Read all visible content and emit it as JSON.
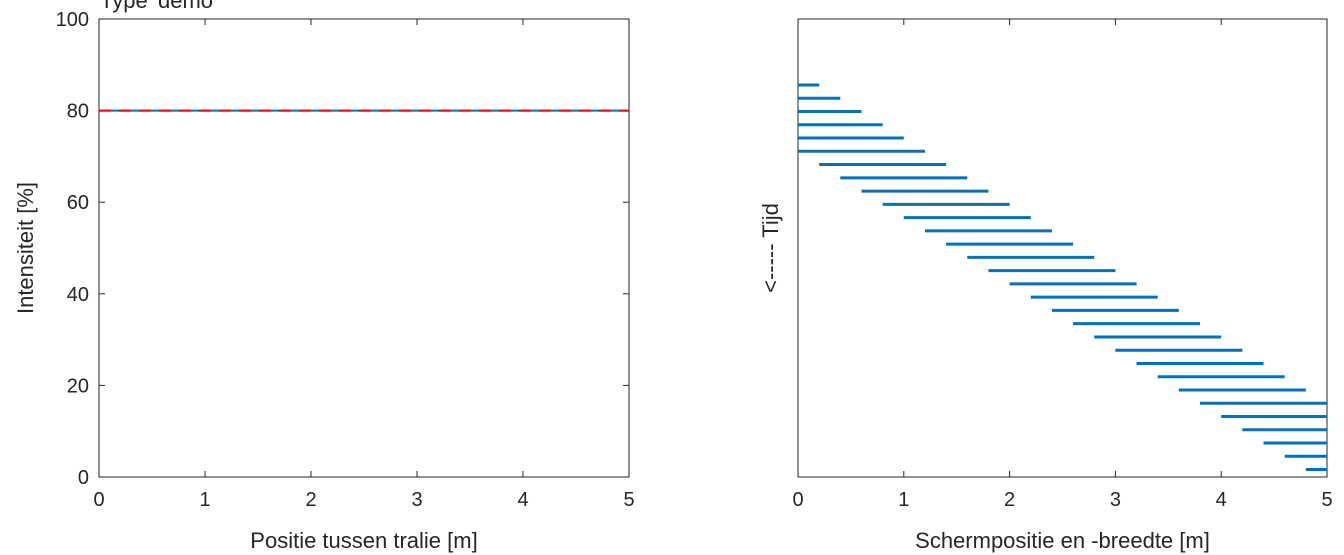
{
  "figure": {
    "title": "Type 'demo'"
  },
  "chart_data": [
    {
      "type": "line",
      "xlabel": "Positie tussen tralie [m]",
      "ylabel": "Intensiteit [%]",
      "xlim": [
        0,
        5
      ],
      "ylim": [
        0,
        100
      ],
      "xticks": [
        0,
        1,
        2,
        3,
        4,
        5
      ],
      "yticks": [
        0,
        20,
        40,
        60,
        80,
        100
      ],
      "box": true,
      "grid": false,
      "series": [
        {
          "x": [
            0,
            5
          ],
          "y": [
            80,
            80
          ],
          "color": "#0072BD",
          "style": "solid"
        },
        {
          "x": [
            0,
            5
          ],
          "y": [
            80,
            80
          ],
          "color": "#FF0000",
          "style": "dashed"
        }
      ]
    },
    {
      "type": "timeline-bars",
      "xlabel": "Schermpositie en -breedte [m]",
      "ylabel": "<----- Tijd",
      "xlim": [
        0,
        5
      ],
      "xticks": [
        0,
        1,
        2,
        3,
        4,
        5
      ],
      "xtick_labels": [
        "0",
        "1",
        "2",
        "3",
        "4",
        "5"
      ],
      "box": true,
      "grid": false,
      "color": "#0072BD",
      "segments": [
        [
          0.0,
          0.2
        ],
        [
          0.0,
          0.4
        ],
        [
          0.0,
          0.6
        ],
        [
          0.0,
          0.8
        ],
        [
          0.0,
          1.0
        ],
        [
          0.0,
          1.2
        ],
        [
          0.2,
          1.4
        ],
        [
          0.4,
          1.6
        ],
        [
          0.6,
          1.8
        ],
        [
          0.8,
          2.0
        ],
        [
          1.0,
          2.2
        ],
        [
          1.2,
          2.4
        ],
        [
          1.4,
          2.6
        ],
        [
          1.6,
          2.8
        ],
        [
          1.8,
          3.0
        ],
        [
          2.0,
          3.2
        ],
        [
          2.2,
          3.4
        ],
        [
          2.4,
          3.6
        ],
        [
          2.6,
          3.8
        ],
        [
          2.8,
          4.0
        ],
        [
          3.0,
          4.2
        ],
        [
          3.2,
          4.4
        ],
        [
          3.4,
          4.6
        ],
        [
          3.6,
          4.8
        ],
        [
          3.8,
          5.0
        ],
        [
          4.0,
          5.0
        ],
        [
          4.2,
          5.0
        ],
        [
          4.4,
          5.0
        ],
        [
          4.6,
          5.0
        ],
        [
          4.8,
          5.0
        ]
      ]
    }
  ]
}
